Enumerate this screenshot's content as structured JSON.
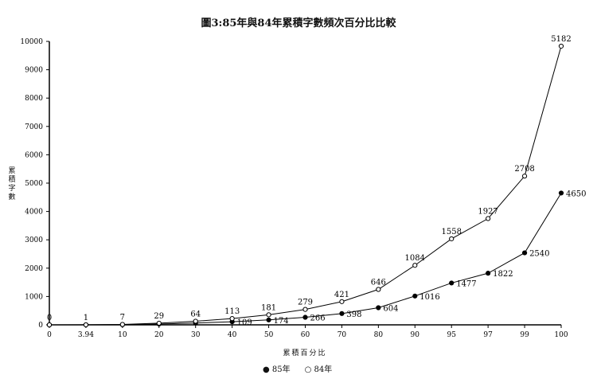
{
  "chart_data": {
    "type": "line",
    "stacked": true,
    "title": "圖3:85年與84年累積字數頻次百分比比較",
    "xlabel": "累積百分比",
    "ylabel": "累積字數",
    "categories": [
      "0",
      "3.94",
      "10",
      "20",
      "30",
      "40",
      "50",
      "60",
      "70",
      "80",
      "90",
      "95",
      "97",
      "99",
      "100"
    ],
    "yticks": [
      "0",
      "1000",
      "2000",
      "3000",
      "4000",
      "5000",
      "6000",
      "7000",
      "8000",
      "9000",
      "10000"
    ],
    "ylim": [
      0,
      10000
    ],
    "grid": false,
    "legend_placement": "bottom",
    "series": [
      {
        "name": "85年",
        "marker": "filled-circle",
        "values": [
          0,
          1,
          7,
          29,
          64,
          109,
          174,
          266,
          398,
          604,
          1016,
          1477,
          1822,
          2540,
          4650
        ]
      },
      {
        "name": "84年",
        "marker": "open-circle",
        "values": [
          0,
          1,
          7,
          29,
          64,
          113,
          181,
          279,
          421,
          646,
          1084,
          1558,
          1927,
          2708,
          5182
        ]
      }
    ]
  }
}
